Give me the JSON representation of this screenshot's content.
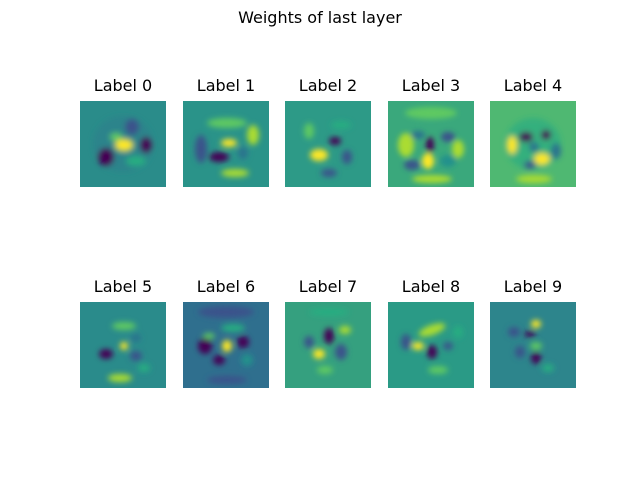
{
  "figure": {
    "title": "Weights of last layer",
    "colormap": [
      "#440154",
      "#3b528b",
      "#2c728e",
      "#21918c",
      "#27ad81",
      "#5ec962",
      "#aadc32",
      "#fde725"
    ],
    "background_color": "#2a8c8a"
  },
  "panels": [
    {
      "label": "Label 0"
    },
    {
      "label": "Label 1"
    },
    {
      "label": "Label 2"
    },
    {
      "label": "Label 3"
    },
    {
      "label": "Label 4"
    },
    {
      "label": "Label 5"
    },
    {
      "label": "Label 6"
    },
    {
      "label": "Label 7"
    },
    {
      "label": "Label 8"
    },
    {
      "label": "Label 9"
    }
  ]
}
